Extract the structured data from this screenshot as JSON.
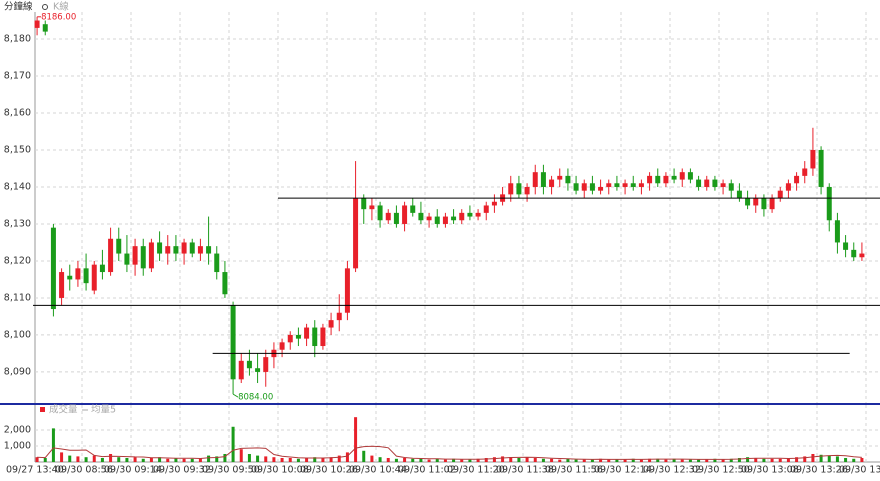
{
  "chart_data": {
    "type": "candlestick",
    "title": "分鐘線",
    "legend": "K線",
    "up_color": "#e8202a",
    "down_color": "#1a9b1a",
    "grid": true,
    "ylim": [
      8081.6,
      8187.3
    ],
    "yticks": [
      {
        "value": 8090,
        "label": "8,090"
      },
      {
        "value": 8100,
        "label": "8,100"
      },
      {
        "value": 8110,
        "label": "8,110"
      },
      {
        "value": 8120,
        "label": "8,120"
      },
      {
        "value": 8130,
        "label": "8,130"
      },
      {
        "value": 8140,
        "label": "8,140"
      },
      {
        "value": 8150,
        "label": "8,150"
      },
      {
        "value": 8160,
        "label": "8,160"
      },
      {
        "value": 8170,
        "label": "8,170"
      },
      {
        "value": 8180,
        "label": "8,180"
      }
    ],
    "xticks": [
      "09/27 13:40",
      "09/30 08:56",
      "09/30 09:14",
      "09/30 09:32",
      "09/30 09:50",
      "09/30 10:08",
      "09/30 10:26",
      "09/30 10:44",
      "09/30 11:02",
      "09/30 11:20",
      "09/30 11:38",
      "09/30 11:56",
      "09/30 12:14",
      "09/30 12:32",
      "09/30 12:50",
      "09/30 13:08",
      "09/30 13:26",
      "09/30 13"
    ],
    "open": [
      8183,
      8184,
      8129,
      8110,
      8116,
      8115,
      8118,
      8112,
      8119,
      8117,
      8126,
      8122,
      8119,
      8124,
      8118,
      8125,
      8122,
      8124,
      8122,
      8125,
      8122,
      8124,
      8122,
      8117,
      8108,
      8088,
      8093,
      8091,
      8090,
      8094,
      8096,
      8098,
      8100,
      8099,
      8102,
      8097,
      8102,
      8104,
      8106,
      8118,
      8137,
      8134,
      8135,
      8131,
      8133,
      8130,
      8135,
      8133,
      8131,
      8132,
      8130,
      8132,
      8131,
      8133,
      8132,
      8133,
      8135,
      8136,
      8138,
      8141,
      8138,
      8140,
      8144,
      8140,
      8142,
      8143,
      8141,
      8139,
      8141,
      8139,
      8140,
      8141,
      8140,
      8141,
      8140,
      8141,
      8143,
      8141,
      8143,
      8142,
      8144,
      8142,
      8140,
      8142,
      8140,
      8141,
      8139,
      8137,
      8135,
      8137,
      8134,
      8137,
      8139,
      8141,
      8143,
      8145,
      8150,
      8140,
      8131,
      8125,
      8123,
      8121
    ],
    "high": [
      8186,
      8185,
      8130,
      8118,
      8119,
      8120,
      8122,
      8120,
      8123,
      8129,
      8129,
      8127,
      8126,
      8126,
      8126,
      8128,
      8127,
      8127,
      8126,
      8126,
      8126,
      8132,
      8124,
      8120,
      8109,
      8095,
      8096,
      8095,
      8096,
      8098,
      8099,
      8101,
      8102,
      8103,
      8104,
      8103,
      8106,
      8111,
      8120,
      8147,
      8138,
      8137,
      8136,
      8134,
      8135,
      8136,
      8137,
      8136,
      8133,
      8134,
      8133,
      8134,
      8134,
      8135,
      8134,
      8136,
      8138,
      8140,
      8143,
      8143,
      8141,
      8146,
      8146,
      8143,
      8145,
      8145,
      8143,
      8142,
      8143,
      8142,
      8142,
      8143,
      8142,
      8143,
      8142,
      8144,
      8145,
      8144,
      8145,
      8145,
      8145,
      8143,
      8143,
      8143,
      8142,
      8142,
      8141,
      8139,
      8138,
      8138,
      8138,
      8140,
      8142,
      8144,
      8147,
      8156,
      8151,
      8141,
      8133,
      8127,
      8125,
      8125
    ],
    "low": [
      8181,
      8181,
      8105,
      8108,
      8112,
      8113,
      8112,
      8111,
      8115,
      8116,
      8120,
      8117,
      8116,
      8116,
      8117,
      8120,
      8119,
      8120,
      8119,
      8121,
      8120,
      8119,
      8115,
      8110,
      8084,
      8087,
      8089,
      8087,
      8086,
      8091,
      8094,
      8096,
      8097,
      8097,
      8094,
      8096,
      8100,
      8101,
      8104,
      8117,
      8130,
      8131,
      8129,
      8130,
      8129,
      8128,
      8132,
      8130,
      8129,
      8129,
      8129,
      8130,
      8130,
      8131,
      8131,
      8131,
      8133,
      8135,
      8136,
      8137,
      8136,
      8138,
      8138,
      8138,
      8140,
      8139,
      8138,
      8137,
      8138,
      8138,
      8138,
      8139,
      8138,
      8139,
      8138,
      8139,
      8140,
      8140,
      8141,
      8140,
      8141,
      8139,
      8139,
      8139,
      8138,
      8137,
      8136,
      8134,
      8133,
      8132,
      8133,
      8136,
      8137,
      8139,
      8141,
      8143,
      8138,
      8128,
      8122,
      8121,
      8120,
      8120
    ],
    "close": [
      8185,
      8182,
      8107,
      8117,
      8115,
      8118,
      8114,
      8119,
      8117,
      8126,
      8122,
      8119,
      8124,
      8118,
      8125,
      8122,
      8124,
      8122,
      8125,
      8122,
      8124,
      8122,
      8117,
      8111,
      8088,
      8093,
      8091,
      8090,
      8094,
      8096,
      8098,
      8100,
      8099,
      8102,
      8097,
      8102,
      8104,
      8106,
      8118,
      8137,
      8134,
      8135,
      8131,
      8133,
      8130,
      8135,
      8133,
      8131,
      8132,
      8130,
      8132,
      8131,
      8133,
      8132,
      8133,
      8135,
      8136,
      8138,
      8141,
      8138,
      8140,
      8144,
      8140,
      8142,
      8143,
      8141,
      8139,
      8141,
      8139,
      8140,
      8141,
      8140,
      8141,
      8140,
      8141,
      8143,
      8141,
      8143,
      8142,
      8144,
      8142,
      8140,
      8142,
      8140,
      8141,
      8139,
      8137,
      8135,
      8137,
      8134,
      8137,
      8139,
      8141,
      8143,
      8145,
      8150,
      8140,
      8131,
      8125,
      8123,
      8121,
      8122
    ],
    "max_label": {
      "value": 8186,
      "label": "8186.00"
    },
    "min_label": {
      "value": 8084,
      "label": "8084.00"
    },
    "lines": [
      {
        "value": 8137,
        "from": 30
      },
      {
        "value": 8108,
        "from": 0
      },
      {
        "value": 8095,
        "from": 22,
        "to": 99
      }
    ],
    "volume": {
      "name": "成交量",
      "ylim": [
        0,
        3560
      ],
      "yticks": [
        {
          "value": 1000,
          "label": "1,000"
        },
        {
          "value": 2000,
          "label": "2,000"
        }
      ],
      "values": [
        300,
        250,
        2100,
        600,
        400,
        350,
        300,
        400,
        250,
        500,
        300,
        250,
        300,
        200,
        250,
        300,
        200,
        250,
        200,
        200,
        250,
        400,
        350,
        500,
        2200,
        800,
        500,
        400,
        350,
        300,
        250,
        250,
        200,
        250,
        300,
        250,
        300,
        400,
        600,
        2800,
        700,
        400,
        300,
        250,
        200,
        250,
        200,
        200,
        150,
        200,
        150,
        200,
        150,
        150,
        200,
        250,
        300,
        350,
        300,
        250,
        300,
        250,
        200,
        200,
        150,
        200,
        150,
        150,
        150,
        200,
        150,
        150,
        150,
        200,
        150,
        200,
        200,
        150,
        200,
        150,
        150,
        150,
        150,
        200,
        150,
        200,
        250,
        300,
        250,
        200,
        200,
        200,
        250,
        300,
        350,
        500,
        450,
        400,
        350,
        250,
        200,
        250
      ],
      "ma": {
        "name": "均量5",
        "color": "#b03a3a",
        "values": [
          300,
          275,
          883,
          813,
          730,
          740,
          750,
          410,
          340,
          360,
          350,
          340,
          320,
          310,
          260,
          260,
          250,
          240,
          240,
          230,
          220,
          260,
          280,
          340,
          740,
          850,
          870,
          880,
          850,
          470,
          360,
          310,
          270,
          250,
          250,
          250,
          260,
          300,
          370,
          870,
          960,
          980,
          960,
          890,
          370,
          280,
          240,
          220,
          200,
          200,
          180,
          180,
          170,
          170,
          170,
          190,
          210,
          250,
          280,
          290,
          300,
          290,
          260,
          240,
          220,
          200,
          180,
          170,
          160,
          170,
          160,
          160,
          160,
          170,
          160,
          170,
          180,
          180,
          180,
          180,
          170,
          160,
          160,
          160,
          160,
          170,
          190,
          220,
          230,
          240,
          240,
          230,
          220,
          230,
          260,
          320,
          370,
          400,
          410,
          390,
          330,
          290
        ]
      }
    }
  }
}
